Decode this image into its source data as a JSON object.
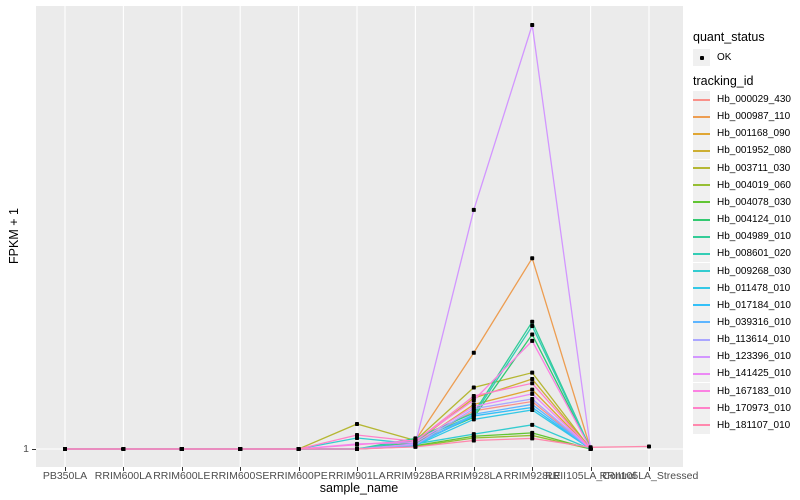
{
  "figure": {
    "colors": {
      "panel_background": "#EBEBEB",
      "grid": "#FFFFFF",
      "tick_label": "#4D4D4D",
      "axis_title": "#000000",
      "point": "#000000",
      "legend_key_background": "#F0F0F0"
    }
  },
  "chart_data": {
    "type": "line",
    "title": "",
    "xlabel": "sample_name",
    "ylabel": "FPKM + 1",
    "y_tick_labels": [
      "1"
    ],
    "y_note": "Only the '1' tick is labeled; series values below are fractions of panel height above the y=1 baseline (0 = at baseline, 1 = tallest peak).",
    "grid": "white gridlines on gray panel",
    "legend_position": "right",
    "categories": [
      "PB350LA",
      "RRIM600LA",
      "RRIM600LE",
      "RRIM600SE",
      "RRIM600PE",
      "RRIM901LA",
      "RRIM928BA",
      "RRIM928LA",
      "RRIM928LE",
      "RRII105LA_Control",
      "RRII105LA_Stressed"
    ],
    "quant_status_legend": {
      "title": "quant_status",
      "items": [
        {
          "label": "OK",
          "shape": "point"
        }
      ]
    },
    "tracking_id_legend_title": "tracking_id",
    "series": [
      {
        "name": "Hb_000029_430",
        "color": "#F8766D",
        "values": [
          0,
          0,
          0,
          0,
          0,
          0,
          0.012,
          0.09,
          0.112,
          0,
          null
        ]
      },
      {
        "name": "Hb_000987_110",
        "color": "#E88526",
        "values": [
          0,
          0,
          0,
          0,
          0,
          0,
          0.02,
          0.227,
          0.45,
          0,
          null
        ]
      },
      {
        "name": "Hb_001168_090",
        "color": "#D89000",
        "values": [
          0,
          0,
          0,
          0,
          0,
          0,
          0.012,
          0.105,
          0.14,
          0,
          null
        ]
      },
      {
        "name": "Hb_001952_080",
        "color": "#C09B00",
        "values": [
          0,
          0,
          0,
          0,
          0,
          0,
          0.015,
          0.12,
          0.165,
          0,
          null
        ]
      },
      {
        "name": "Hb_003711_030",
        "color": "#A3A500",
        "values": [
          0,
          0,
          0,
          0,
          0,
          0.059,
          0.02,
          0.145,
          0.18,
          0,
          null
        ]
      },
      {
        "name": "Hb_004019_060",
        "color": "#7CAE00",
        "values": [
          0,
          0,
          0,
          0,
          0,
          0,
          0.006,
          0.026,
          0.032,
          0,
          null
        ]
      },
      {
        "name": "Hb_004078_030",
        "color": "#39B600",
        "values": [
          0,
          0,
          0,
          0,
          0,
          0,
          0.008,
          0.03,
          0.038,
          0,
          null
        ]
      },
      {
        "name": "Hb_004124_010",
        "color": "#00BB4E",
        "values": [
          0,
          0,
          0,
          0,
          0,
          0,
          0.015,
          0.075,
          0.27,
          0,
          null
        ]
      },
      {
        "name": "Hb_004989_010",
        "color": "#00BF7D",
        "values": [
          0,
          0,
          0,
          0,
          0,
          0,
          0.025,
          0.085,
          0.3,
          0,
          null
        ]
      },
      {
        "name": "Hb_008601_020",
        "color": "#00C1A3",
        "values": [
          0,
          0,
          0,
          0,
          0,
          0,
          0.02,
          0.08,
          0.29,
          0,
          null
        ]
      },
      {
        "name": "Hb_009268_030",
        "color": "#00BFC4",
        "values": [
          0,
          0,
          0,
          0,
          0,
          0.026,
          0.012,
          0.035,
          0.057,
          0,
          null
        ]
      },
      {
        "name": "Hb_011478_010",
        "color": "#00BAE0",
        "values": [
          0,
          0,
          0,
          0,
          0,
          0,
          0.008,
          0.07,
          0.092,
          0,
          null
        ]
      },
      {
        "name": "Hb_017184_010",
        "color": "#00B0F6",
        "values": [
          0,
          0,
          0,
          0,
          0,
          0,
          0.01,
          0.078,
          0.098,
          0,
          null
        ]
      },
      {
        "name": "Hb_039316_010",
        "color": "#35A2FF",
        "values": [
          0,
          0,
          0,
          0,
          0,
          0,
          0.01,
          0.082,
          0.105,
          0,
          null
        ]
      },
      {
        "name": "Hb_113614_010",
        "color": "#9590FF",
        "values": [
          0,
          0,
          0,
          0,
          0,
          0,
          0.01,
          0.095,
          0.118,
          0,
          null
        ]
      },
      {
        "name": "Hb_123396_010",
        "color": "#C77CFF",
        "values": [
          0,
          0,
          0,
          0,
          0,
          0,
          0.012,
          0.564,
          1.0,
          0,
          null
        ]
      },
      {
        "name": "Hb_141425_010",
        "color": "#E76BF3",
        "values": [
          0,
          0,
          0,
          0,
          0,
          0.012,
          0.015,
          0.1,
          0.13,
          0,
          null
        ]
      },
      {
        "name": "Hb_167183_010",
        "color": "#FA62DB",
        "values": [
          0,
          0,
          0,
          0,
          0,
          0.01,
          0.02,
          0.115,
          0.255,
          0,
          null
        ]
      },
      {
        "name": "Hb_170973_010",
        "color": "#FF62BC",
        "values": [
          0,
          0,
          0,
          0,
          0,
          0.033,
          0.018,
          0.125,
          0.155,
          0,
          null
        ]
      },
      {
        "name": "Hb_181107_010",
        "color": "#FF6A98",
        "values": [
          0,
          0,
          0,
          0,
          0,
          0,
          0.005,
          0.02,
          0.025,
          0.004,
          0.006
        ]
      }
    ]
  }
}
